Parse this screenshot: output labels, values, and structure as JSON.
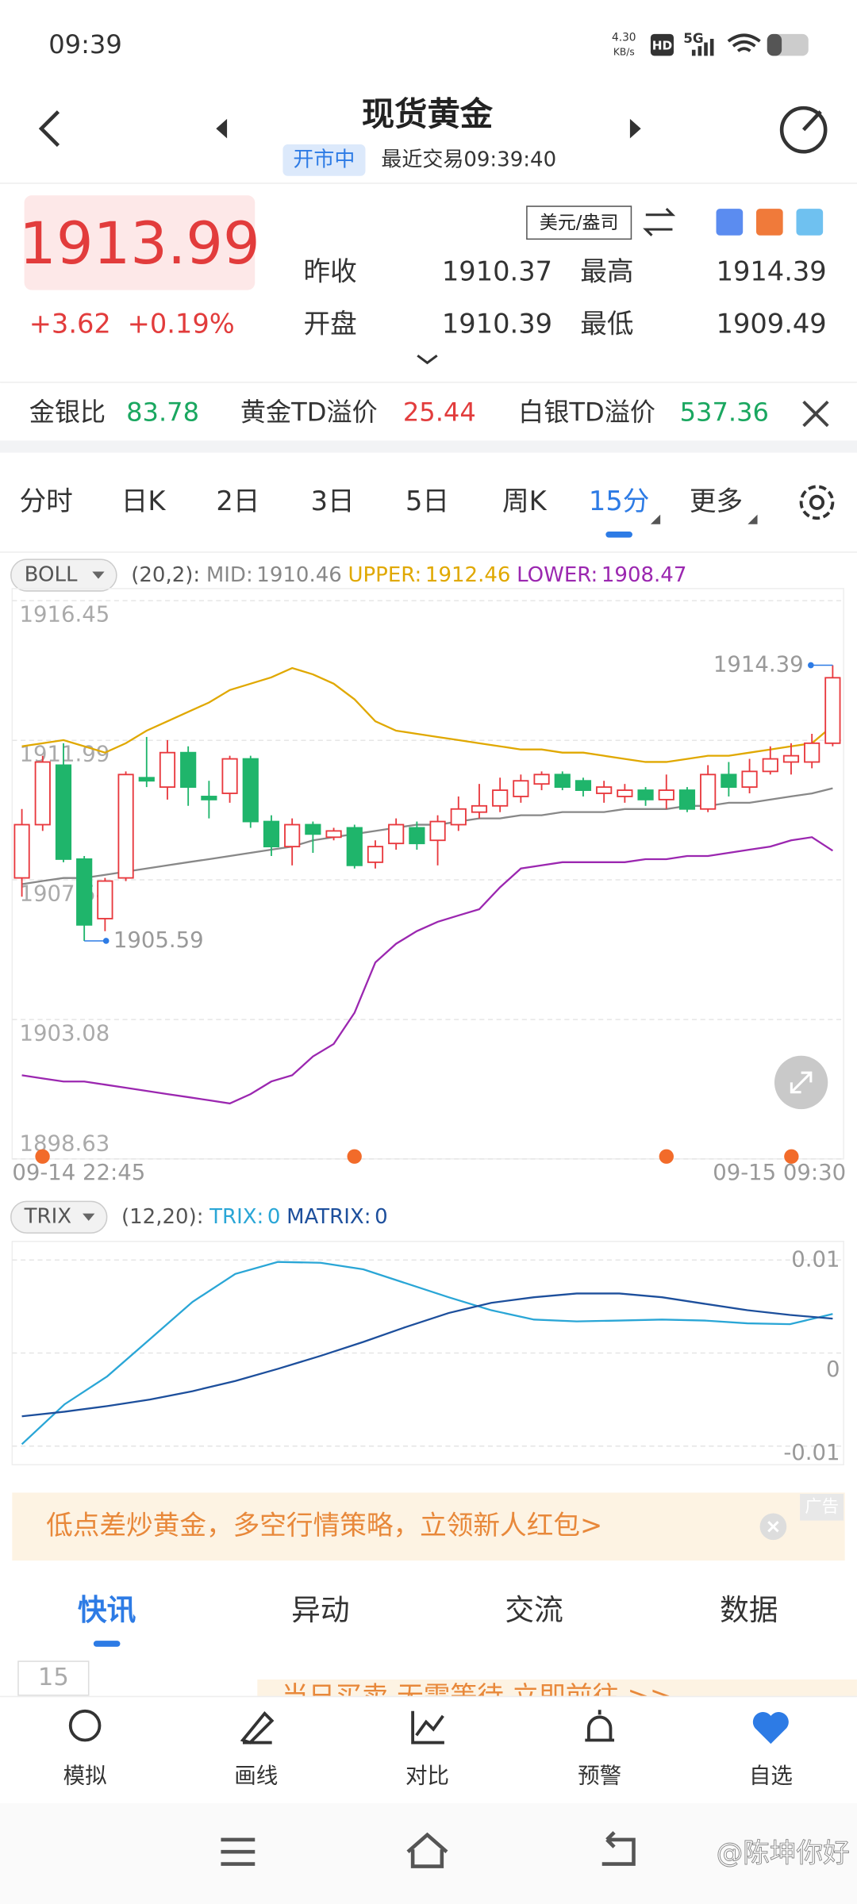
{
  "status": {
    "time": "09:39",
    "speed": "4.30",
    "speed_unit": "KB/s",
    "hd": "HD",
    "net": "5G"
  },
  "header": {
    "title": "现货黄金",
    "status": "开市中",
    "last_trade": "最近交易09:39:40"
  },
  "quote": {
    "price": "1913.99",
    "change": "+3.62",
    "change_pct": "+0.19%",
    "unit": "美元/盎司",
    "fields": [
      {
        "label": "昨收",
        "value": "1910.37"
      },
      {
        "label": "最高",
        "value": "1914.39"
      },
      {
        "label": "开盘",
        "value": "1910.39"
      },
      {
        "label": "最低",
        "value": "1909.49"
      }
    ]
  },
  "ratios": [
    {
      "label": "金银比",
      "value": "83.78"
    },
    {
      "label": "黄金TD溢价",
      "value": "25.44"
    },
    {
      "label": "白银TD溢价",
      "value": "537.36"
    }
  ],
  "periods": [
    "分时",
    "日K",
    "2日",
    "3日",
    "5日",
    "周K",
    "15分",
    "更多"
  ],
  "chart_data": [
    {
      "type": "candlestick",
      "indicator": "BOLL",
      "params": "(20,2):",
      "x_labels": [
        "09-14 22:45",
        "09-15 09:30"
      ],
      "ylim": [
        1898.63,
        1916.45
      ],
      "yticks": [
        1916.45,
        1911.99,
        1907.54,
        1903.08,
        1898.63
      ],
      "grid": true,
      "up_color": "#e8383d",
      "down_color": "#1fb56b",
      "open": [
        1907.6,
        1909.3,
        1911.2,
        1908.2,
        1906.3,
        1907.6,
        1910.8,
        1910.5,
        1911.6,
        1910.2,
        1910.3,
        1911.4,
        1909.4,
        1908.6,
        1909.3,
        1908.9,
        1909.2,
        1908.1,
        1908.7,
        1909.2,
        1908.8,
        1909.3,
        1909.7,
        1909.9,
        1910.2,
        1910.6,
        1910.9,
        1910.7,
        1910.3,
        1910.2,
        1910.4,
        1910.1,
        1910.4,
        1909.8,
        1910.9,
        1910.5,
        1911.0,
        1911.3,
        1911.3,
        1911.9
      ],
      "high": [
        1909.8,
        1911.5,
        1911.9,
        1908.3,
        1907.6,
        1911.0,
        1912.1,
        1912.0,
        1911.8,
        1910.7,
        1911.5,
        1911.5,
        1909.6,
        1909.5,
        1909.4,
        1909.2,
        1909.3,
        1908.8,
        1909.5,
        1909.4,
        1909.6,
        1910.2,
        1910.6,
        1910.8,
        1910.9,
        1911.0,
        1911.0,
        1910.8,
        1910.7,
        1910.6,
        1910.5,
        1910.9,
        1910.5,
        1911.2,
        1911.3,
        1911.4,
        1911.8,
        1911.9,
        1912.2,
        1914.39
      ],
      "low": [
        1907.0,
        1909.1,
        1908.1,
        1905.59,
        1905.9,
        1907.5,
        1910.5,
        1910.1,
        1909.9,
        1909.5,
        1910.0,
        1909.2,
        1908.3,
        1908.0,
        1908.4,
        1908.8,
        1907.9,
        1907.9,
        1908.5,
        1908.5,
        1908.0,
        1909.1,
        1909.5,
        1909.7,
        1910.0,
        1910.4,
        1910.4,
        1910.2,
        1910.0,
        1910.0,
        1909.9,
        1909.8,
        1909.7,
        1909.7,
        1910.2,
        1910.3,
        1910.9,
        1910.9,
        1911.1,
        1911.8
      ],
      "close": [
        1909.3,
        1911.3,
        1908.2,
        1906.1,
        1907.5,
        1910.9,
        1910.7,
        1911.6,
        1910.5,
        1910.1,
        1911.4,
        1909.4,
        1908.6,
        1909.3,
        1909.0,
        1909.1,
        1908.0,
        1908.6,
        1909.3,
        1908.7,
        1909.4,
        1909.8,
        1909.9,
        1910.4,
        1910.7,
        1910.9,
        1910.5,
        1910.4,
        1910.5,
        1910.4,
        1910.1,
        1910.4,
        1909.8,
        1910.9,
        1910.5,
        1911.0,
        1911.4,
        1911.5,
        1911.9,
        1913.99
      ],
      "series": [
        {
          "name": "MID:",
          "color": "#888888",
          "values": [
            1907.4,
            1907.5,
            1907.6,
            1907.6,
            1907.7,
            1907.8,
            1907.9,
            1908.0,
            1908.1,
            1908.2,
            1908.3,
            1908.4,
            1908.5,
            1908.6,
            1908.8,
            1908.9,
            1909.0,
            1909.1,
            1909.2,
            1909.3,
            1909.3,
            1909.4,
            1909.5,
            1909.5,
            1909.6,
            1909.6,
            1909.7,
            1909.7,
            1909.7,
            1909.8,
            1909.8,
            1909.8,
            1909.9,
            1909.9,
            1910.0,
            1910.0,
            1910.1,
            1910.2,
            1910.3,
            1910.46
          ]
        },
        {
          "name": "UPPER:",
          "color": "#e0a800",
          "values": [
            1911.8,
            1911.9,
            1912.0,
            1911.8,
            1911.6,
            1911.9,
            1912.3,
            1912.6,
            1912.9,
            1913.2,
            1913.6,
            1913.8,
            1914.0,
            1914.3,
            1914.1,
            1913.8,
            1913.3,
            1912.6,
            1912.3,
            1912.2,
            1912.1,
            1912.0,
            1911.9,
            1911.8,
            1911.7,
            1911.7,
            1911.6,
            1911.6,
            1911.5,
            1911.4,
            1911.3,
            1911.3,
            1911.4,
            1911.5,
            1911.5,
            1911.6,
            1911.7,
            1911.8,
            1911.9,
            1912.46
          ]
        },
        {
          "name": "LOWER:",
          "color": "#9b27b0",
          "values": [
            1901.3,
            1901.2,
            1901.1,
            1901.1,
            1901.0,
            1900.9,
            1900.8,
            1900.7,
            1900.6,
            1900.5,
            1900.4,
            1900.7,
            1901.1,
            1901.3,
            1901.9,
            1902.3,
            1903.3,
            1904.9,
            1905.5,
            1905.9,
            1906.2,
            1906.4,
            1906.6,
            1907.3,
            1907.9,
            1908.0,
            1908.1,
            1908.1,
            1908.1,
            1908.1,
            1908.2,
            1908.2,
            1908.3,
            1908.3,
            1908.4,
            1908.5,
            1908.6,
            1908.8,
            1908.9,
            1908.47
          ]
        }
      ]
    },
    {
      "type": "line",
      "indicator": "TRIX",
      "params": "(12,20):",
      "ylim": [
        -0.012,
        0.012
      ],
      "yticks": [
        0.01,
        0,
        -0.01
      ],
      "grid": true,
      "series": [
        {
          "name": "TRIX:",
          "color": "#2aa6d6",
          "value_label": "0",
          "values": [
            -0.0098,
            -0.0055,
            -0.0025,
            0.0015,
            0.0055,
            0.0085,
            0.0098,
            0.0097,
            0.009,
            0.0075,
            0.006,
            0.0046,
            0.0036,
            0.0034,
            0.0035,
            0.0036,
            0.0035,
            0.0032,
            0.0031,
            0.0042
          ]
        },
        {
          "name": "MATRIX:",
          "color": "#1d4f9c",
          "value_label": "0",
          "values": [
            -0.0068,
            -0.0063,
            -0.0057,
            -0.005,
            -0.0041,
            -0.003,
            -0.0017,
            -0.0003,
            0.0012,
            0.0028,
            0.0043,
            0.0054,
            0.006,
            0.0064,
            0.0064,
            0.006,
            0.0053,
            0.0046,
            0.0041,
            0.0037
          ]
        }
      ]
    }
  ],
  "ad": {
    "text": "低点差炒黄金，多空行情策略，立领新人红包>",
    "tag": "广告"
  },
  "news_tabs": [
    "快讯",
    "异动",
    "交流",
    "数据"
  ],
  "news": {
    "date": "15",
    "banner": "当日买卖 无需等待 立即前往 >>"
  },
  "nav": [
    "模拟",
    "画线",
    "对比",
    "预警",
    "自选"
  ],
  "watermark": "@陈坤你好"
}
